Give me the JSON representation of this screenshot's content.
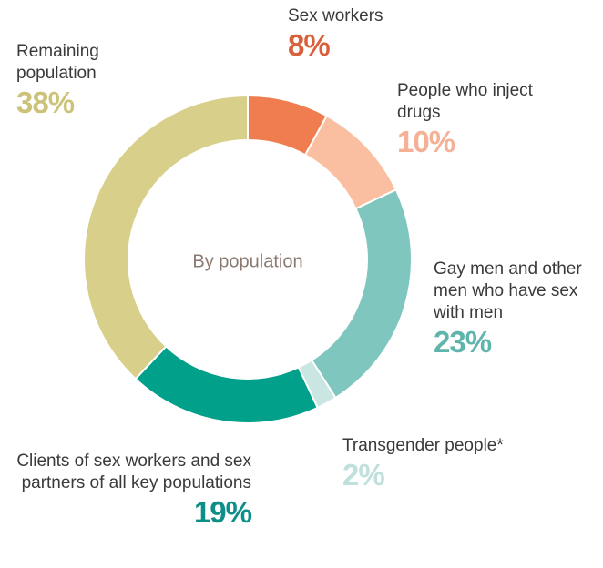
{
  "chart_data": {
    "type": "donut",
    "center_label": "By population",
    "categories": [
      "Sex workers",
      "People who inject drugs",
      "Gay men and other men who have sex with men",
      "Transgender people*",
      "Clients of sex workers and sex partners of all key populations",
      "Remaining population"
    ],
    "values": [
      8,
      10,
      23,
      2,
      19,
      38
    ],
    "value_labels": [
      "8%",
      "10%",
      "23%",
      "2%",
      "19%",
      "38%"
    ],
    "colors": [
      "#ef7d50",
      "#f9bfa0",
      "#7fc6bf",
      "#c9e6e2",
      "#00a08a",
      "#d8d08a"
    ],
    "label_colors": [
      "#d9603a",
      "#f5b196",
      "#5fb4ab",
      "#bfe0db",
      "#0b8f87",
      "#cdc27a"
    ]
  }
}
